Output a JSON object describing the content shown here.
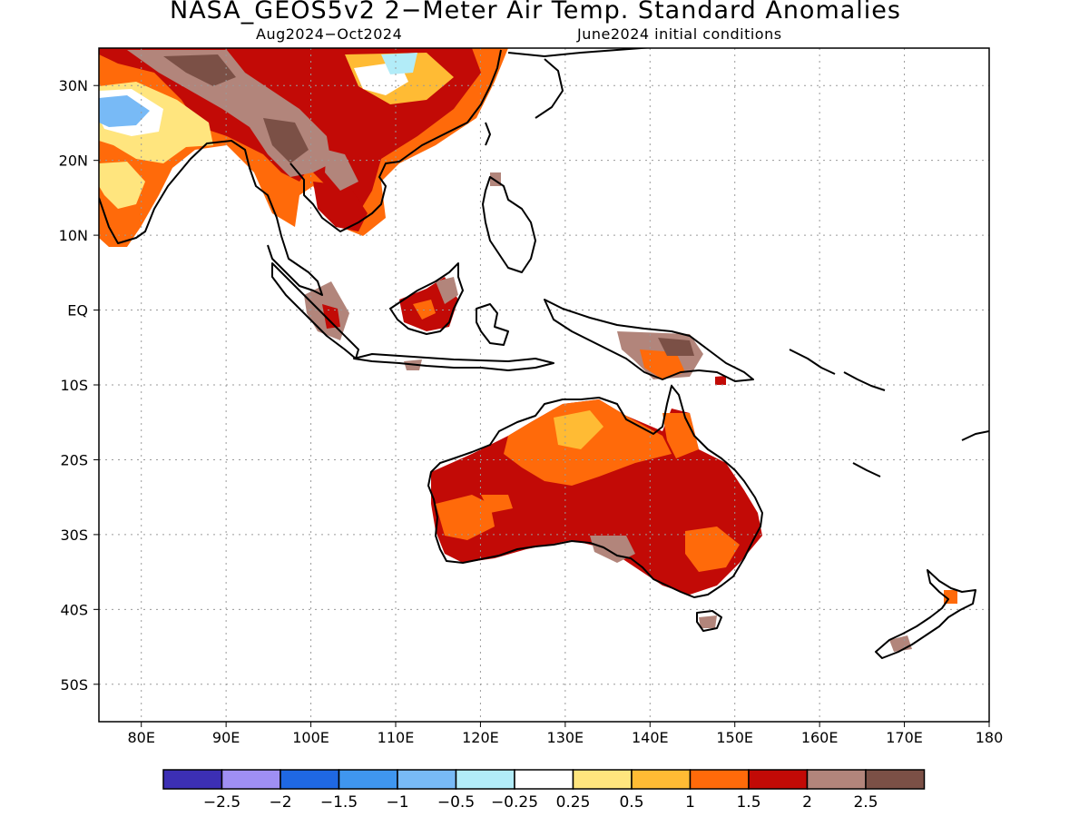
{
  "title": "NASA_GEOS5v2 2−Meter Air Temp. Standard Anomalies",
  "subtitle_left": "Aug2024−Oct2024",
  "subtitle_right": "June2024 initial conditions",
  "map": {
    "lon_range": [
      75,
      180
    ],
    "lat_range": [
      -55,
      35
    ],
    "lon_ticks": [
      {
        "value": 80,
        "label": "80E"
      },
      {
        "value": 90,
        "label": "90E"
      },
      {
        "value": 100,
        "label": "100E"
      },
      {
        "value": 110,
        "label": "110E"
      },
      {
        "value": 120,
        "label": "120E"
      },
      {
        "value": 130,
        "label": "130E"
      },
      {
        "value": 140,
        "label": "140E"
      },
      {
        "value": 150,
        "label": "150E"
      },
      {
        "value": 160,
        "label": "160E"
      },
      {
        "value": 170,
        "label": "170E"
      },
      {
        "value": 180,
        "label": "180"
      }
    ],
    "lat_ticks": [
      {
        "value": 30,
        "label": "30N"
      },
      {
        "value": 20,
        "label": "20N"
      },
      {
        "value": 10,
        "label": "10N"
      },
      {
        "value": 0,
        "label": "EQ"
      },
      {
        "value": -10,
        "label": "10S"
      },
      {
        "value": -20,
        "label": "20S"
      },
      {
        "value": -30,
        "label": "30S"
      },
      {
        "value": -40,
        "label": "40S"
      },
      {
        "value": -50,
        "label": "50S"
      }
    ],
    "grid": "dotted"
  },
  "colorbar": {
    "colors": [
      "#3c2fb4",
      "#9f8ff4",
      "#1f68e3",
      "#3f96ef",
      "#78baf6",
      "#b2ecf8",
      "#ffffff",
      "#ffe57e",
      "#ffbb34",
      "#ff6a0a",
      "#c20a06",
      "#b2857b",
      "#7b5046"
    ],
    "labels": [
      "−2.5",
      "−2",
      "−1.5",
      "−1",
      "−0.5",
      "−0.25",
      "0.25",
      "0.5",
      "1",
      "1.5",
      "2",
      "2.5"
    ]
  }
}
